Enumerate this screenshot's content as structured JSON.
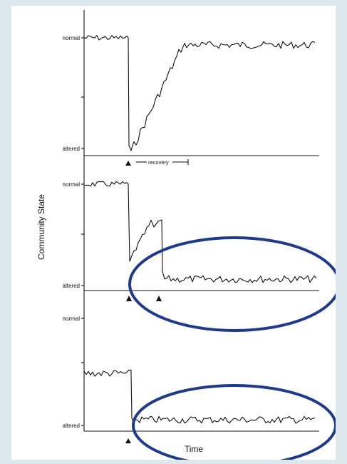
{
  "chart_data": {
    "type": "line",
    "xlabel": "Time",
    "ylabel": "Community State",
    "colors": {
      "highlight": "#1f3a8a",
      "line": "#111111"
    },
    "panels": [
      {
        "tick_labels": [
          "normal",
          "altered"
        ],
        "annotation": "recovery",
        "disturbance_markers": [
          1
        ],
        "highlighted": false
      },
      {
        "tick_labels": [
          "normal",
          "altered"
        ],
        "disturbance_markers": [
          1,
          2
        ],
        "highlighted": true
      },
      {
        "tick_labels": [
          "normal",
          "altered"
        ],
        "disturbance_markers": [
          1
        ],
        "highlighted": true
      }
    ]
  }
}
